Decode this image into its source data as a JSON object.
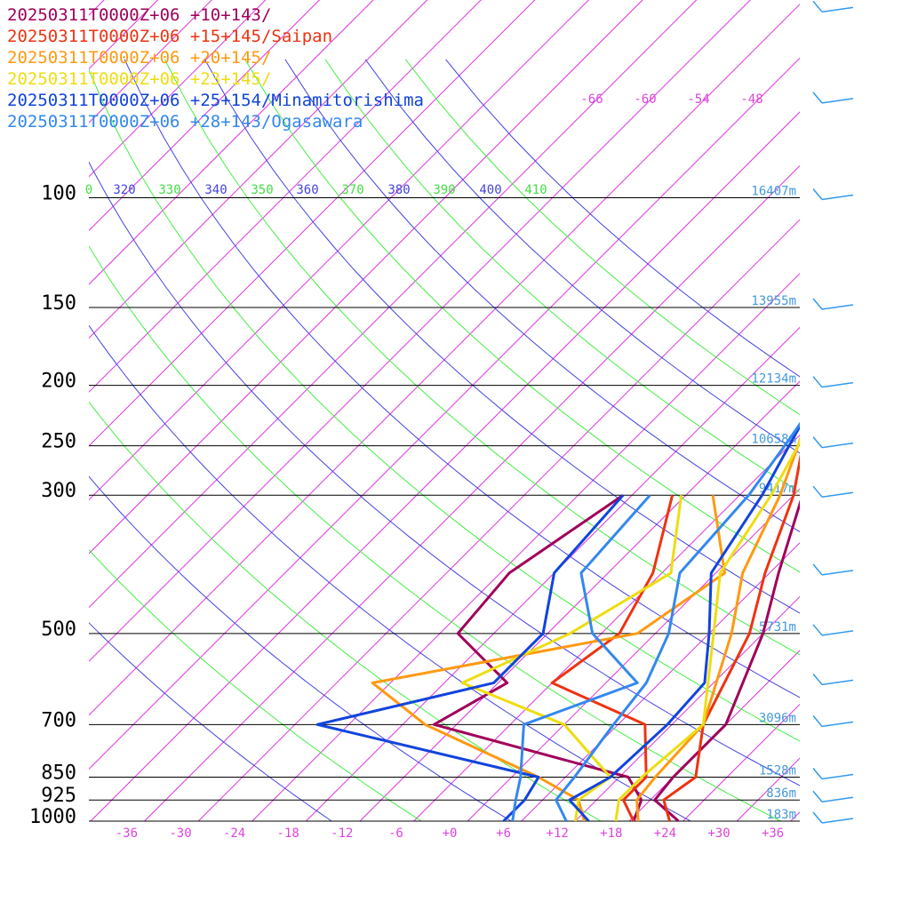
{
  "chart_data": {
    "type": "line",
    "title": "",
    "xlabel": "",
    "ylabel": "",
    "axes": {
      "x_temperature_ticks": [
        "-36",
        "-30",
        "-24",
        "-18",
        "-12",
        "-6",
        "+0",
        "+6",
        "+12",
        "+18",
        "+24",
        "+30",
        "+36"
      ],
      "x_tick_values": [
        -36,
        -30,
        -24,
        -18,
        -12,
        -6,
        0,
        6,
        12,
        18,
        24,
        30,
        36
      ],
      "tick_color": "#dd44dd",
      "pressure_levels": [
        {
          "label": "100",
          "p": 100,
          "height": "16407m"
        },
        {
          "label": "150",
          "p": 150,
          "height": "13955m"
        },
        {
          "label": "200",
          "p": 200,
          "height": "12134m"
        },
        {
          "label": "250",
          "p": 250,
          "height": "10658m"
        },
        {
          "label": "300",
          "p": 300,
          "height": "9417m"
        },
        {
          "label": "500",
          "p": 500,
          "height": "5731m"
        },
        {
          "label": "700",
          "p": 700,
          "height": "3096m"
        },
        {
          "label": "850",
          "p": 850,
          "height": "1528m"
        },
        {
          "label": "925",
          "p": 925,
          "height": "836m"
        },
        {
          "label": "1000",
          "p": 1000,
          "height": "183m"
        }
      ],
      "height_label_color": "#4499dd",
      "isotherm_labels": [
        "-66",
        "-60",
        "-54",
        "-48"
      ],
      "theta_labels": [
        {
          "text": "0",
          "color": "#44dd44"
        },
        {
          "text": "320",
          "color": "#4444dd"
        },
        {
          "text": "330",
          "color": "#44dd44"
        },
        {
          "text": "340",
          "color": "#4444dd"
        },
        {
          "text": "350",
          "color": "#44dd44"
        },
        {
          "text": "360",
          "color": "#4444dd"
        },
        {
          "text": "370",
          "color": "#44dd44"
        },
        {
          "text": "380",
          "color": "#4444dd"
        },
        {
          "text": "390",
          "color": "#44dd44"
        },
        {
          "text": "400",
          "color": "#4444dd"
        },
        {
          "text": "410",
          "color": "#44dd44"
        }
      ]
    },
    "series": [
      {
        "name": "20250311T0000Z+06 +10+143/",
        "color": "#a0005a",
        "temperature": [
          [
            1000,
            25.5
          ],
          [
            925,
            20.5
          ],
          [
            850,
            20
          ],
          [
            700,
            20
          ],
          [
            500,
            14
          ],
          [
            400,
            9
          ],
          [
            300,
            3
          ],
          [
            250,
            -2
          ],
          [
            200,
            -7.5
          ],
          [
            150,
            -13
          ],
          [
            125,
            -16
          ],
          [
            100,
            -15
          ],
          [
            85,
            -10
          ],
          [
            70,
            -6.5
          ],
          [
            50,
            -1.5
          ],
          [
            40,
            1
          ],
          [
            30,
            3
          ]
        ],
        "dewpoint": [
          [
            1000,
            20.5
          ],
          [
            925,
            19
          ],
          [
            850,
            15
          ],
          [
            700,
            -12.5
          ],
          [
            600,
            -9
          ],
          [
            500,
            -20
          ],
          [
            400,
            -21
          ],
          [
            300,
            -17
          ]
        ]
      },
      {
        "name": "20250311T0000Z+06 +15+145/Saipan",
        "color": "#ee3311",
        "temperature": [
          [
            1000,
            24.5
          ],
          [
            925,
            21.5
          ],
          [
            850,
            22.5
          ],
          [
            700,
            17.5
          ],
          [
            500,
            12.5
          ],
          [
            400,
            7.5
          ],
          [
            300,
            2
          ],
          [
            250,
            -2.5
          ],
          [
            200,
            -7
          ],
          [
            150,
            -11.5
          ],
          [
            125,
            -15
          ],
          [
            100,
            -13.5
          ],
          [
            85,
            -10.5
          ],
          [
            70,
            -6.5
          ],
          [
            50,
            -1.5
          ],
          [
            40,
            0.5
          ],
          [
            30,
            3
          ]
        ],
        "dewpoint": [
          [
            1000,
            20.5
          ],
          [
            925,
            17
          ],
          [
            850,
            17
          ],
          [
            700,
            11
          ],
          [
            600,
            -4
          ],
          [
            500,
            -2
          ],
          [
            400,
            -5
          ],
          [
            300,
            -11.5
          ]
        ]
      },
      {
        "name": "20250311T0000Z+06 +20+145/",
        "color": "#ff9911",
        "temperature": [
          [
            1000,
            21
          ],
          [
            925,
            18.5
          ],
          [
            850,
            18
          ],
          [
            700,
            17.5
          ],
          [
            500,
            10.5
          ],
          [
            400,
            5
          ],
          [
            300,
            0.5
          ],
          [
            250,
            -3
          ],
          [
            200,
            -7.5
          ],
          [
            150,
            -12
          ],
          [
            125,
            -13.5
          ],
          [
            100,
            -12
          ],
          [
            85,
            -9.5
          ],
          [
            70,
            -6
          ],
          [
            50,
            -1
          ],
          [
            40,
            1
          ],
          [
            30,
            3
          ]
        ],
        "dewpoint": [
          [
            1000,
            15
          ],
          [
            925,
            12
          ],
          [
            850,
            5
          ],
          [
            700,
            -13.5
          ],
          [
            600,
            -24
          ],
          [
            500,
            0
          ],
          [
            400,
            3
          ],
          [
            300,
            -7
          ]
        ]
      },
      {
        "name": "20250311T0000Z+06 +23+145/",
        "color": "#eedd11",
        "temperature": [
          [
            1000,
            18.5
          ],
          [
            925,
            16.5
          ],
          [
            850,
            16.5
          ],
          [
            700,
            17.5
          ],
          [
            500,
            8.5
          ],
          [
            400,
            2.5
          ],
          [
            300,
            -0.5
          ],
          [
            250,
            -3
          ],
          [
            200,
            -7
          ],
          [
            150,
            -10.5
          ],
          [
            125,
            -12
          ],
          [
            100,
            -9
          ],
          [
            85,
            -7.5
          ],
          [
            70,
            -4.5
          ],
          [
            50,
            0
          ],
          [
            40,
            1.5
          ],
          [
            30,
            3
          ]
        ],
        "dewpoint": [
          [
            1000,
            14
          ],
          [
            925,
            12
          ],
          [
            850,
            13
          ],
          [
            700,
            2
          ],
          [
            600,
            -14
          ],
          [
            500,
            -7.5
          ],
          [
            400,
            -3
          ],
          [
            300,
            -10.5
          ]
        ]
      },
      {
        "name": "20250311T0000Z+06 +25+154/Minamitorishima",
        "color": "#1144dd",
        "temperature": [
          [
            1000,
            15.5
          ],
          [
            925,
            11
          ],
          [
            850,
            13
          ],
          [
            700,
            13.5
          ],
          [
            600,
            13
          ],
          [
            500,
            8
          ],
          [
            400,
            1.5
          ],
          [
            300,
            -1.5
          ],
          [
            250,
            -4
          ],
          [
            200,
            -7
          ],
          [
            150,
            -10.5
          ],
          [
            125,
            -10.5
          ],
          [
            100,
            -9
          ],
          [
            85,
            -6.5
          ],
          [
            70,
            -3.5
          ],
          [
            50,
            1
          ],
          [
            40,
            2
          ],
          [
            30,
            3
          ]
        ],
        "dewpoint": [
          [
            1000,
            6
          ],
          [
            925,
            6
          ],
          [
            850,
            5
          ],
          [
            700,
            -25.5
          ],
          [
            600,
            -10.5
          ],
          [
            500,
            -10.5
          ],
          [
            400,
            -16
          ],
          [
            300,
            -17
          ]
        ]
      },
      {
        "name": "20250311T0000Z+06 +28+143/Ogasawara",
        "color": "#3388ee",
        "temperature": [
          [
            1000,
            13
          ],
          [
            925,
            9.5
          ],
          [
            850,
            9
          ],
          [
            700,
            7.5
          ],
          [
            600,
            6.5
          ],
          [
            500,
            3.5
          ],
          [
            400,
            -2
          ],
          [
            300,
            -3
          ],
          [
            250,
            -4.5
          ],
          [
            200,
            -6.5
          ],
          [
            150,
            -8
          ],
          [
            125,
            -7
          ],
          [
            100,
            -3.5
          ],
          [
            85,
            -5
          ],
          [
            70,
            -2
          ],
          [
            50,
            3
          ],
          [
            40,
            5
          ],
          [
            30,
            7
          ]
        ],
        "dewpoint": [
          [
            1000,
            7
          ],
          [
            925,
            5
          ],
          [
            850,
            3
          ],
          [
            700,
            -2.5
          ],
          [
            600,
            5.5
          ],
          [
            500,
            -5
          ],
          [
            400,
            -13
          ],
          [
            300,
            -14
          ]
        ]
      }
    ],
    "wind_barb_levels": [
      30,
      50,
      70,
      100,
      150,
      200,
      250,
      300,
      400,
      500,
      600,
      700,
      850,
      925,
      1000
    ]
  }
}
